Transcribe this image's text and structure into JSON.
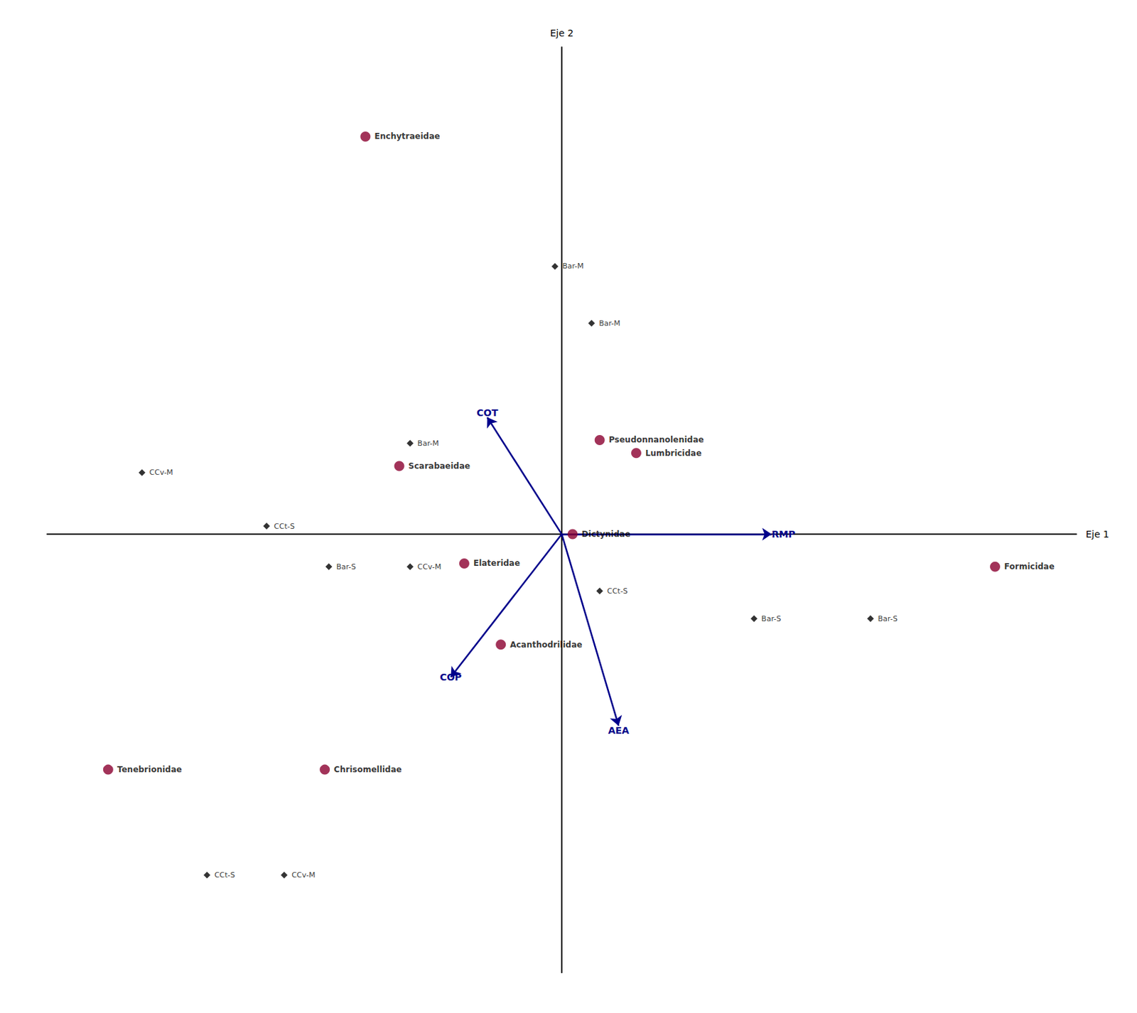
{
  "chart_data": {
    "type": "scatter",
    "xlabel": "Eje 1",
    "ylabel": "Eje 2",
    "xlim": [
      -3.8,
      3.8
    ],
    "ylim": [
      -2.7,
      3.0
    ],
    "tick_labels": false,
    "grid": false,
    "series": [
      {
        "type": "scatter",
        "color": "#8B0030",
        "marker": "circle",
        "x": [
          -1.45,
          -1.2,
          -0.72,
          -0.45,
          0.08,
          0.28,
          0.55,
          3.2,
          -3.35,
          -1.75
        ],
        "y": [
          2.45,
          0.42,
          -0.18,
          -0.68,
          0.0,
          0.58,
          0.5,
          -0.2,
          -1.45,
          -1.45
        ],
        "labels": [
          "Enchytraeidae",
          "Scarabaeidae",
          "Elateridae",
          "Acanthodrilidae",
          "Dictynidae",
          "Pseudonnanolenidae",
          "Lumbricidae",
          "Formicidae",
          "Tenebrionidae",
          "Chrisomellidae"
        ]
      },
      {
        "type": "scatter",
        "color": "#000000",
        "marker": "diamond",
        "x": [
          -0.05,
          0.22,
          -1.12,
          -3.1,
          -2.18,
          -1.72,
          -1.12,
          0.28,
          1.42,
          2.28,
          -2.62,
          -2.05
        ],
        "y": [
          1.65,
          1.3,
          0.56,
          0.38,
          0.05,
          -0.2,
          -0.2,
          -0.35,
          -0.52,
          -0.52,
          -2.1,
          -2.1
        ],
        "labels": [
          "Bar-M",
          "Bar-M",
          "Bar-M",
          "CCv-M",
          "CCt-S",
          "Bar-S",
          "CCv-M",
          "CCt-S",
          "Bar-S",
          "Bar-S",
          "CCt-S",
          "CCv-M"
        ]
      },
      {
        "type": "arrow",
        "color": "#00008B",
        "x": [
          -0.55,
          -0.82,
          1.55,
          0.42
        ],
        "y": [
          0.72,
          -0.88,
          0.0,
          -1.18
        ],
        "labels": [
          "COT",
          "COP",
          "RMP",
          "AEA"
        ]
      }
    ]
  }
}
